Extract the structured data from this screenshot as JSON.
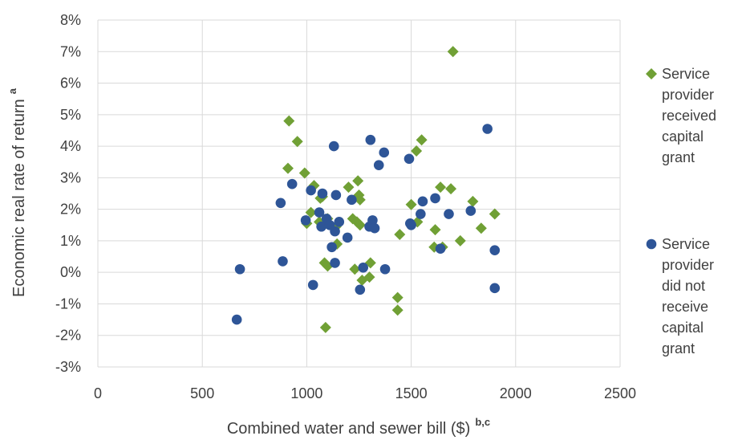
{
  "chart_data": {
    "type": "scatter",
    "xlabel": "Combined water and sewer bill ($)",
    "xlabel_sup": "b,c",
    "ylabel": "Economic real rate of return",
    "ylabel_sup": "a",
    "xlim": [
      0,
      2500
    ],
    "ylim": [
      -3,
      8
    ],
    "x_ticks": [
      "0",
      "500",
      "1000",
      "1500",
      "2000",
      "2500"
    ],
    "x_tick_values": [
      0,
      500,
      1000,
      1500,
      2000,
      2500
    ],
    "y_ticks": [
      "-3%",
      "-2%",
      "-1%",
      "0%",
      "1%",
      "2%",
      "3%",
      "4%",
      "5%",
      "6%",
      "7%",
      "8%"
    ],
    "y_tick_values": [
      -3,
      -2,
      -1,
      0,
      1,
      2,
      3,
      4,
      5,
      6,
      7,
      8
    ],
    "grid": true,
    "legend_position": "right",
    "series": [
      {
        "name": "Service provider received capital grant",
        "legend_lines": [
          "Service",
          "provider",
          "received",
          "capital",
          "grant"
        ],
        "marker": "diamond",
        "color": "#70a035",
        "points": [
          [
            915,
            4.8
          ],
          [
            955,
            4.15
          ],
          [
            910,
            3.3
          ],
          [
            990,
            3.15
          ],
          [
            1035,
            2.75
          ],
          [
            1075,
            2.4
          ],
          [
            1065,
            2.35
          ],
          [
            1020,
            1.9
          ],
          [
            1000,
            1.55
          ],
          [
            1060,
            1.6
          ],
          [
            1100,
            1.7
          ],
          [
            1140,
            1.45
          ],
          [
            1145,
            0.9
          ],
          [
            1085,
            0.3
          ],
          [
            1100,
            0.2
          ],
          [
            1200,
            2.7
          ],
          [
            1245,
            2.9
          ],
          [
            1250,
            2.45
          ],
          [
            1255,
            2.3
          ],
          [
            1220,
            1.7
          ],
          [
            1240,
            1.6
          ],
          [
            1255,
            1.5
          ],
          [
            1230,
            0.1
          ],
          [
            1305,
            0.3
          ],
          [
            1265,
            -0.25
          ],
          [
            1300,
            -0.15
          ],
          [
            1435,
            -0.8
          ],
          [
            1435,
            -1.2
          ],
          [
            1445,
            1.2
          ],
          [
            1090,
            -1.75
          ],
          [
            1500,
            2.15
          ],
          [
            1525,
            3.85
          ],
          [
            1550,
            4.2
          ],
          [
            1530,
            1.6
          ],
          [
            1615,
            1.35
          ],
          [
            1610,
            0.8
          ],
          [
            1650,
            0.8
          ],
          [
            1640,
            2.7
          ],
          [
            1690,
            2.65
          ],
          [
            1700,
            7.0
          ],
          [
            1735,
            1.0
          ],
          [
            1795,
            2.25
          ],
          [
            1835,
            1.4
          ],
          [
            1900,
            1.85
          ]
        ]
      },
      {
        "name": "Service provider did not receive capital grant",
        "legend_lines": [
          "Service",
          "provider",
          "did not",
          "receive",
          "capital",
          "grant"
        ],
        "marker": "circle",
        "color": "#2e5597",
        "points": [
          [
            665,
            -1.5
          ],
          [
            680,
            0.1
          ],
          [
            875,
            2.2
          ],
          [
            885,
            0.35
          ],
          [
            930,
            2.8
          ],
          [
            995,
            1.65
          ],
          [
            1020,
            2.6
          ],
          [
            1075,
            2.5
          ],
          [
            1060,
            1.9
          ],
          [
            1070,
            1.45
          ],
          [
            1095,
            1.7
          ],
          [
            1110,
            1.5
          ],
          [
            1120,
            0.8
          ],
          [
            1130,
            4.0
          ],
          [
            1140,
            2.45
          ],
          [
            1135,
            1.3
          ],
          [
            1155,
            1.6
          ],
          [
            1030,
            -0.4
          ],
          [
            1135,
            0.3
          ],
          [
            1195,
            1.1
          ],
          [
            1215,
            2.3
          ],
          [
            1270,
            0.15
          ],
          [
            1255,
            -0.55
          ],
          [
            1305,
            4.2
          ],
          [
            1300,
            1.45
          ],
          [
            1315,
            1.65
          ],
          [
            1325,
            1.4
          ],
          [
            1345,
            3.4
          ],
          [
            1370,
            3.8
          ],
          [
            1375,
            0.1
          ],
          [
            1490,
            3.6
          ],
          [
            1495,
            1.55
          ],
          [
            1500,
            1.5
          ],
          [
            1545,
            1.85
          ],
          [
            1555,
            2.25
          ],
          [
            1615,
            2.35
          ],
          [
            1640,
            0.75
          ],
          [
            1680,
            1.85
          ],
          [
            1785,
            1.95
          ],
          [
            1865,
            4.55
          ],
          [
            1900,
            0.7
          ],
          [
            1900,
            -0.5
          ]
        ]
      }
    ]
  }
}
